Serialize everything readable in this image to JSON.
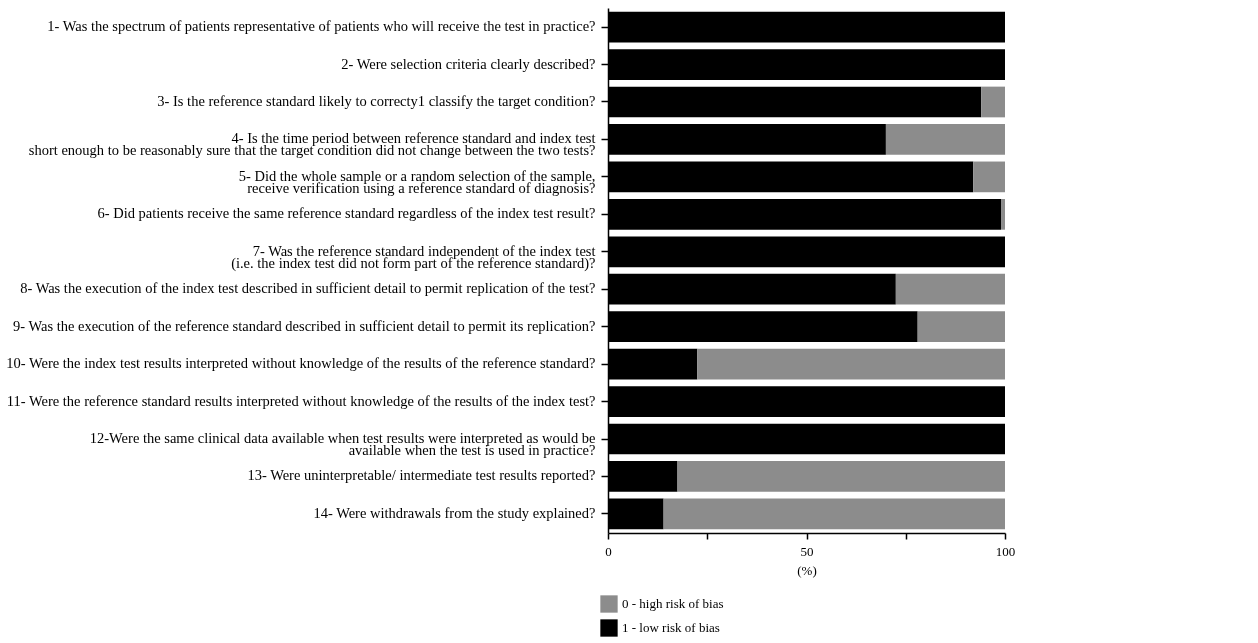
{
  "chart_data": {
    "type": "bar",
    "orientation": "horizontal",
    "stacked": true,
    "xlabel": "(%)",
    "categories": [
      "1- Was the spectrum of patients representative of patients who will receive the test in practice?",
      "2- Were selection criteria clearly described?",
      "3- Is the reference standard likely to correcty1 classify the target condition?",
      "4- Is the time period between reference standard and index test\nshort enough to be reasonably sure that the target condition did not change between the two tests?",
      "5- Did the whole sample or a random selection of the sample,\nreceive verification using a reference standard of diagnosis?",
      "6- Did patients receive the same reference standard regardless of the index test result?",
      "7- Was the reference standard independent of the index test\n(i.e. the index test did not form part of the reference standard)?",
      "8- Was the execution of the index test described in sufficient detail to permit replication of the test?",
      "9- Was the execution of the reference standard described in sufficient detail to permit its replication?",
      "10- Were the index test results interpreted without knowledge of the results of the reference standard?",
      "11- Were the reference standard results interpreted without knowledge of the results of the index test?",
      "12-Were the same clinical data available when test results were interpreted as would be\navailable when the test is used in practice?",
      "13- Were uninterpretable/ intermediate test results reported?",
      "14- Were withdrawals from the study explained?"
    ],
    "series": [
      {
        "name": "1 - low risk of bias",
        "color": "#000000",
        "values": [
          100,
          100,
          94,
          70,
          92,
          99,
          100,
          72.5,
          78,
          22.5,
          100,
          100,
          17.5,
          14
        ]
      },
      {
        "name": "0 -  high risk of bias",
        "color": "#8c8c8c",
        "values": [
          0,
          0,
          6,
          30,
          8,
          1,
          0,
          27.5,
          22,
          77.5,
          0,
          0,
          82.5,
          86
        ]
      }
    ],
    "xlim": [
      0,
      100
    ],
    "xticks": [
      0,
      {
        "value": 25,
        "label": null
      },
      50,
      {
        "value": 75,
        "label": null
      },
      100
    ],
    "grid": false,
    "legend": "bottom left"
  }
}
